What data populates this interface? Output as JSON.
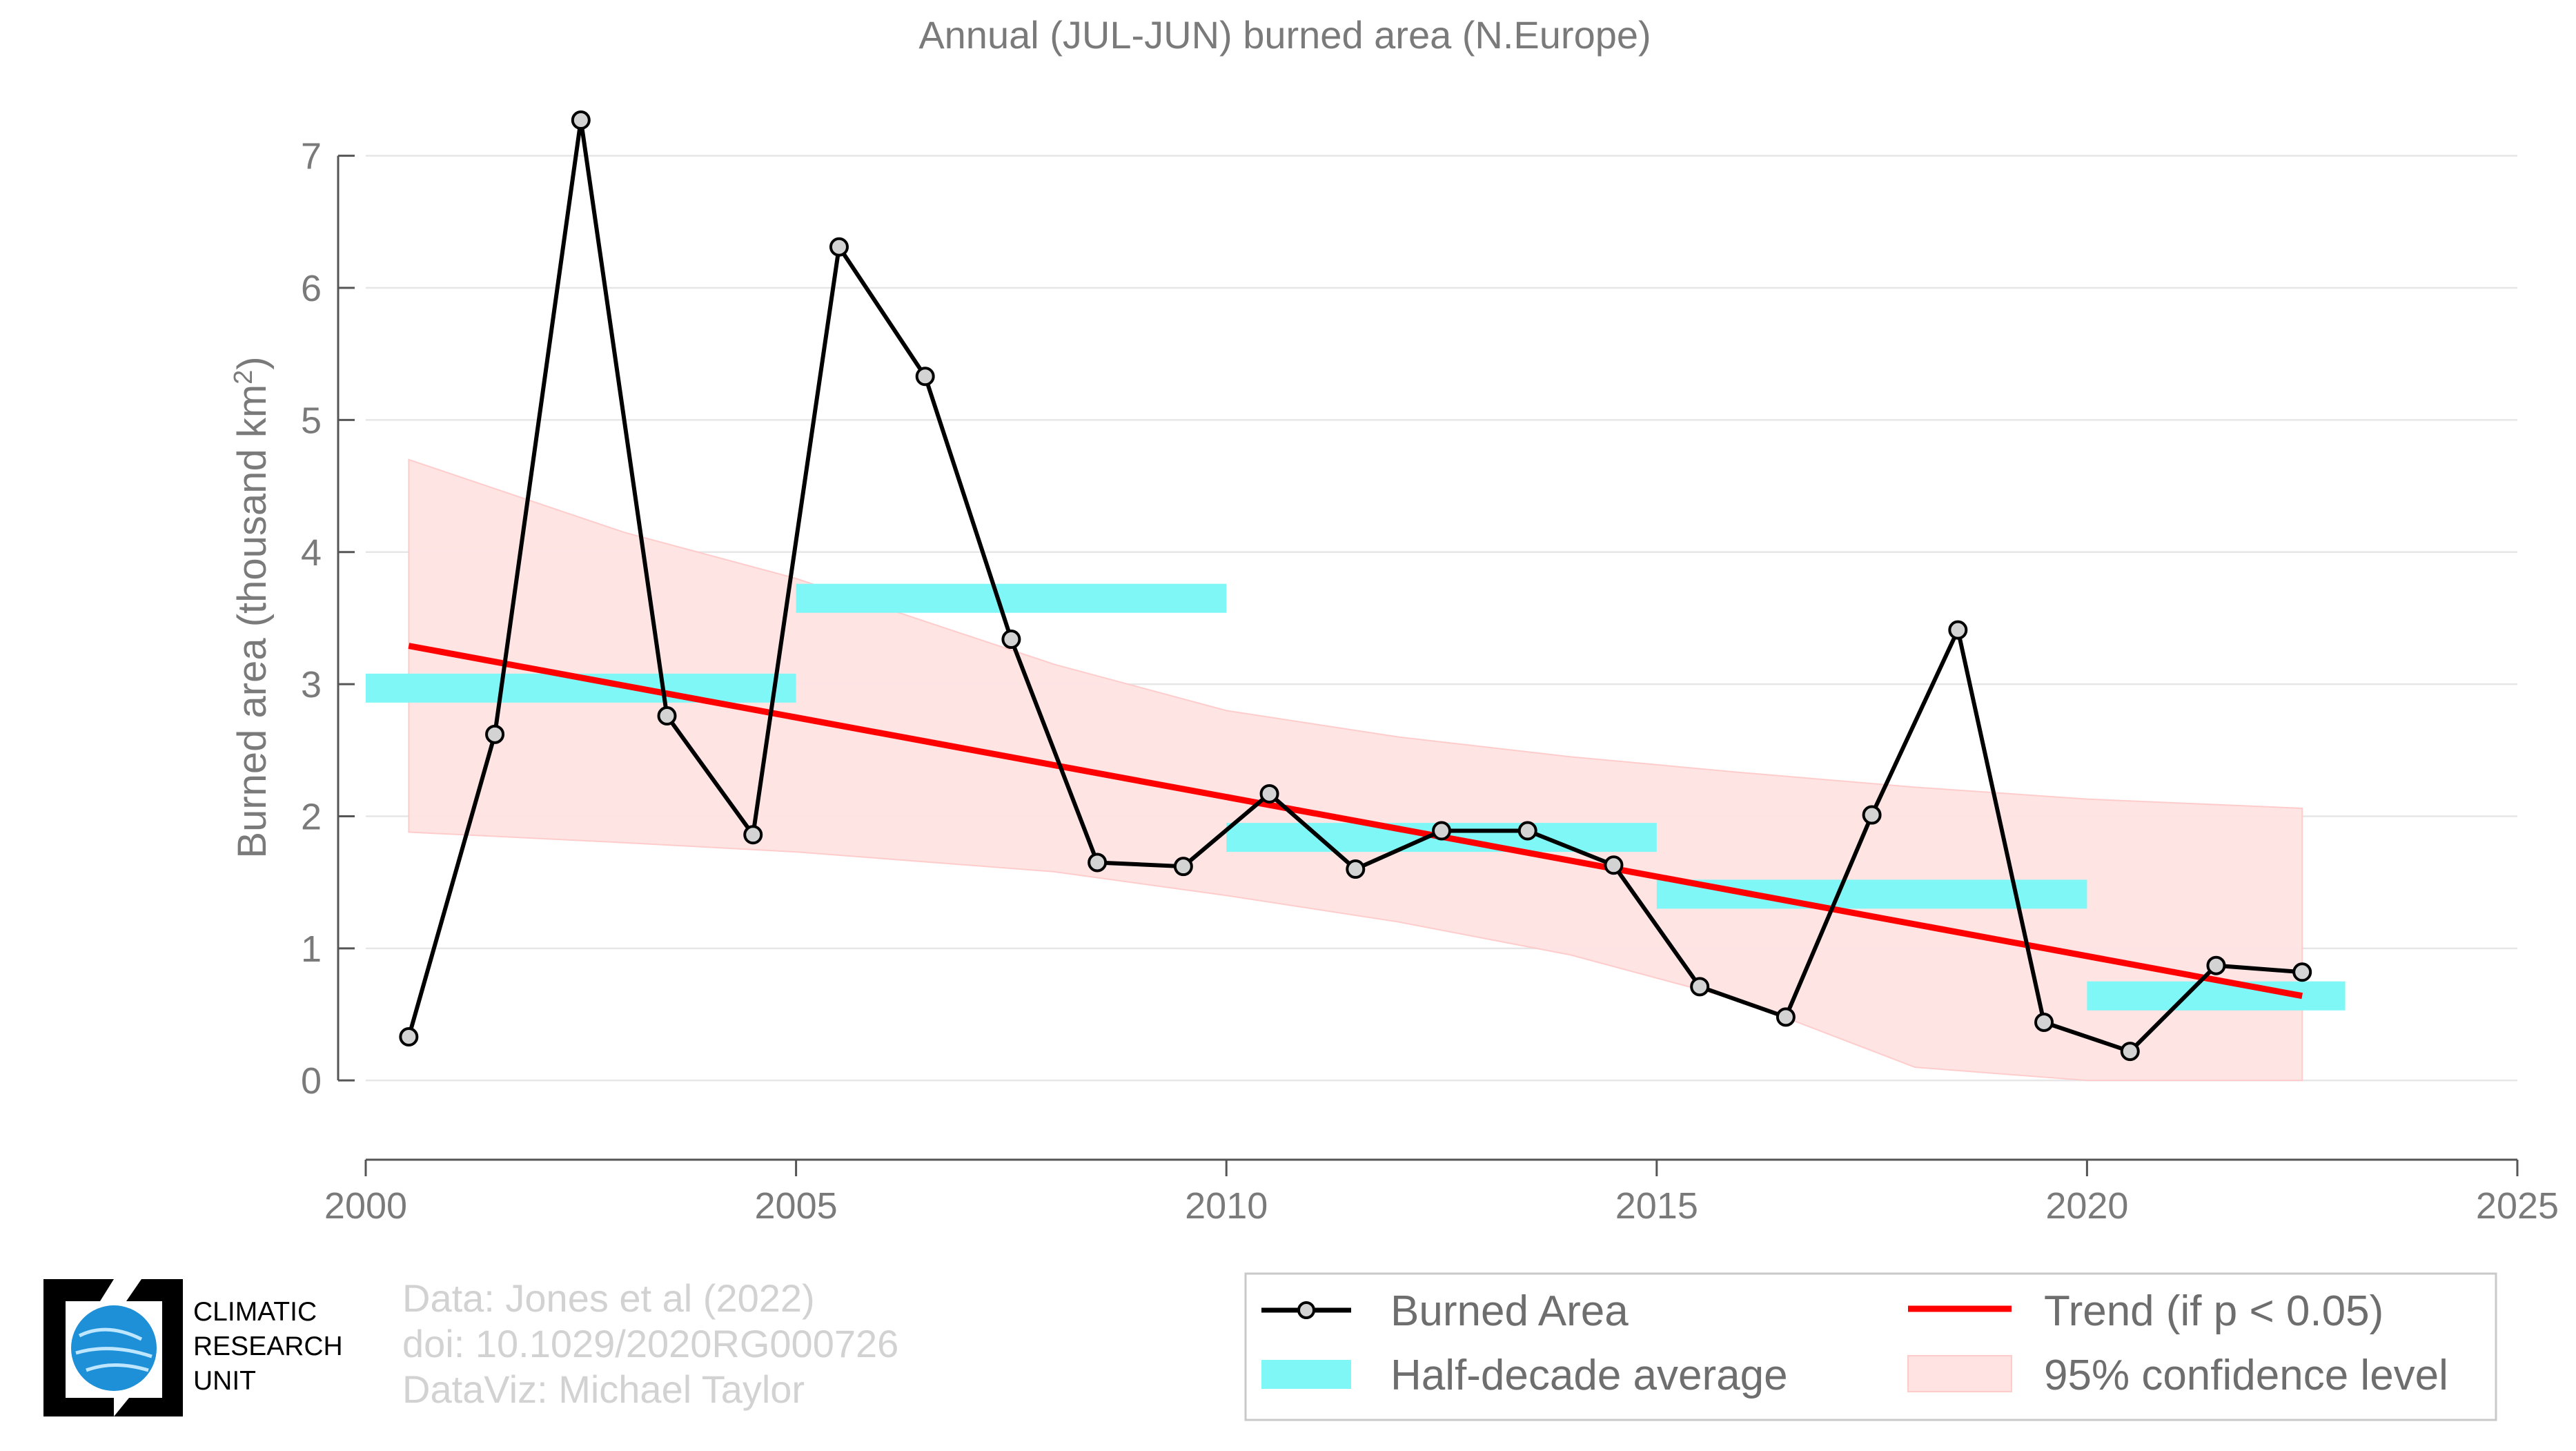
{
  "chart_data": {
    "type": "line",
    "title": "Annual (JUL-JUN) burned area (N.Europe)",
    "ylabel": "Burned area (thousand km",
    "ylabel_sup": "2",
    "ylabel_close": ")",
    "xlim": [
      2000,
      2025
    ],
    "ylim": [
      -0.6,
      7.5
    ],
    "x_ticks": [
      2000,
      2005,
      2010,
      2015,
      2020,
      2025
    ],
    "y_ticks": [
      0,
      1,
      2,
      3,
      4,
      5,
      6,
      7
    ],
    "grid": "horizontal",
    "series": [
      {
        "name": "Burned Area",
        "color": "#000000",
        "marker_fill": "#d3d3d3",
        "points": [
          [
            2000.5,
            0.33
          ],
          [
            2001.5,
            2.62
          ],
          [
            2002.5,
            7.27
          ],
          [
            2003.5,
            2.76
          ],
          [
            2004.5,
            1.86
          ],
          [
            2005.5,
            6.31
          ],
          [
            2006.5,
            5.33
          ],
          [
            2007.5,
            3.34
          ],
          [
            2008.5,
            1.65
          ],
          [
            2009.5,
            1.62
          ],
          [
            2010.5,
            2.17
          ],
          [
            2011.5,
            1.6
          ],
          [
            2012.5,
            1.89
          ],
          [
            2013.5,
            1.89
          ],
          [
            2014.5,
            1.63
          ],
          [
            2015.5,
            0.71
          ],
          [
            2016.5,
            0.48
          ],
          [
            2017.5,
            2.01
          ],
          [
            2018.5,
            3.41
          ],
          [
            2019.5,
            0.44
          ],
          [
            2020.5,
            0.22
          ],
          [
            2021.5,
            0.87
          ],
          [
            2022.5,
            0.82
          ]
        ]
      },
      {
        "name": "Half-decade average",
        "color": "#7ff7f7",
        "segments": [
          {
            "x0": 2000,
            "x1": 2005,
            "y": 2.97
          },
          {
            "x0": 2005,
            "x1": 2010,
            "y": 3.65
          },
          {
            "x0": 2010,
            "x1": 2015,
            "y": 1.84
          },
          {
            "x0": 2015,
            "x1": 2020,
            "y": 1.41
          },
          {
            "x0": 2020,
            "x1": 2023,
            "y": 0.64
          }
        ]
      },
      {
        "name": "Trend (if p < 0.05)",
        "color": "#ff0000",
        "line": {
          "x0": 2000.5,
          "y0": 3.29,
          "x1": 2022.5,
          "y1": 0.64
        }
      },
      {
        "name": "95% confidence level",
        "color": "#ffe3e3",
        "band": {
          "x": [
            2000.5,
            2003,
            2005,
            2008,
            2010,
            2012,
            2014,
            2016,
            2018,
            2020,
            2022.5
          ],
          "upper": [
            4.7,
            4.15,
            3.8,
            3.15,
            2.8,
            2.6,
            2.45,
            2.33,
            2.22,
            2.13,
            2.06
          ],
          "lower": [
            1.88,
            1.8,
            1.73,
            1.58,
            1.4,
            1.2,
            0.95,
            0.6,
            0.1,
            -0.2,
            -0.6
          ]
        }
      }
    ],
    "legend": {
      "position": "bottom-right",
      "entries": [
        "Burned Area",
        "Trend (if p < 0.05)",
        "Half-decade average",
        "95% confidence level"
      ]
    }
  },
  "credits": {
    "line1": "Data: Jones et al (2022)",
    "line2": "doi: 10.1029/2020RG000726",
    "line3": "DataViz: Michael Taylor"
  },
  "logo": {
    "line1": "CLIMATIC",
    "line2": "RESEARCH",
    "line3": "UNIT",
    "globe_color": "#1e90d8"
  }
}
